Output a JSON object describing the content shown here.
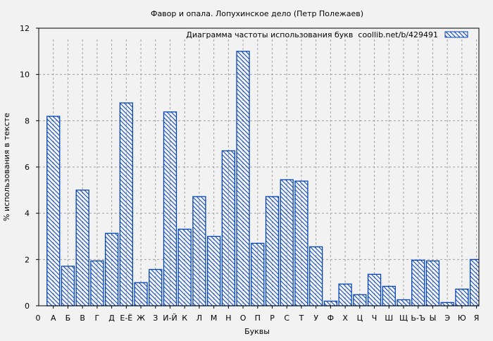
{
  "chart_data": {
    "type": "bar",
    "title": "Фавор и опала. Лопухинское дело (Петр Полежаев)",
    "xlabel": "Буквы",
    "ylabel": "% использования в тексте",
    "x_origin_label": "0",
    "categories": [
      "А",
      "Б",
      "В",
      "Г",
      "Д",
      "Е-Ё",
      "Ж",
      "З",
      "И-Й",
      "К",
      "Л",
      "М",
      "Н",
      "О",
      "П",
      "Р",
      "С",
      "Т",
      "У",
      "Ф",
      "Х",
      "Ц",
      "Ч",
      "Ш",
      "Щ",
      "Ь-Ъ",
      "Ы",
      "Э",
      "Ю",
      "Я"
    ],
    "series": [
      {
        "name": "Диаграмма частоты использования букв  coollib.net/b/429491",
        "values": [
          8.19,
          1.71,
          5.0,
          1.94,
          3.13,
          8.77,
          1.0,
          1.57,
          8.38,
          3.31,
          4.72,
          3.0,
          6.7,
          11.0,
          2.7,
          4.72,
          5.45,
          5.39,
          2.55,
          0.2,
          0.94,
          0.48,
          1.36,
          0.84,
          0.26,
          1.97,
          1.94,
          0.14,
          0.72,
          2.0
        ]
      }
    ],
    "ylim": [
      0,
      12
    ],
    "yticks": [
      0,
      2,
      4,
      6,
      8,
      10,
      12
    ],
    "grid": true,
    "legend_position": "top-right",
    "colors": {
      "bar": "#0645b4",
      "background": "#f2f2f2",
      "grid": "#a0a0a0"
    }
  }
}
